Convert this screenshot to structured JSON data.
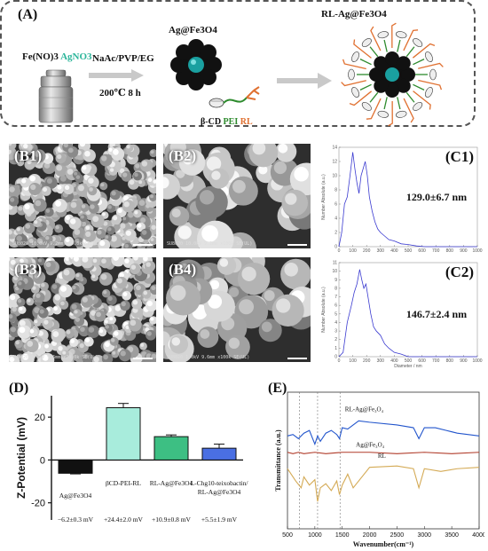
{
  "panel_a": {
    "label": "(A)",
    "precursor_1": "Fe(NO)3",
    "precursor_2": "AgNO3",
    "conditions_1": "NaAc/PVP/EG",
    "conditions_2": "200℃ 8 h",
    "product_1": "Ag@Fe3O4",
    "product_2": "RL-Ag@Fe3O4",
    "ligand_1": "β-CD",
    "ligand_2": "PEI",
    "ligand_3": "RL",
    "colors": {
      "agno3": "#2bb59a",
      "pei": "#2e8b2e",
      "rl": "#e07030",
      "core": "#1aa0a0"
    }
  },
  "sem": [
    {
      "label": "(B1)",
      "scale_text": "SU8020 10.0kV 9.2mm x20.0k SE(UL)",
      "bar_text": "2.00µm"
    },
    {
      "label": "(B2)",
      "scale_text": "SU8020 10.0kV 9.2mm x100k SE(UL)",
      "bar_text": "500nm"
    },
    {
      "label": "(B3)",
      "scale_text": "SU8020 1.0kV 9.6mm x20.0k SE(UL)",
      "bar_text": "2.00µm"
    },
    {
      "label": "(B4)",
      "scale_text": "SU8020 1.0kV 9.6mm x100k SE(UL)",
      "bar_text": "500nm"
    }
  ],
  "chart_data": [
    {
      "id": "C1",
      "type": "line",
      "label": "(C1)",
      "annotation": "129.0±6.7 nm",
      "ylabel": "Number Absolute (a.u.)",
      "xlabel": "",
      "xlim": [
        0,
        1000
      ],
      "ylim": [
        0,
        14
      ],
      "xticks": [
        0,
        100,
        200,
        300,
        400,
        500,
        600,
        700,
        800,
        900,
        1000
      ],
      "yticks": [
        0,
        2,
        4,
        6,
        8,
        10,
        12,
        14
      ],
      "x": [
        0,
        20,
        40,
        60,
        80,
        100,
        115,
        130,
        145,
        160,
        175,
        190,
        205,
        220,
        240,
        260,
        280,
        300,
        330,
        360,
        400,
        450,
        500,
        560,
        620,
        700,
        1000
      ],
      "y": [
        0,
        2,
        6,
        7,
        10,
        13.3,
        11,
        9,
        7.5,
        10,
        11,
        12,
        10,
        7,
        5,
        3.5,
        2.5,
        2,
        1.5,
        1,
        0.8,
        0.4,
        0.3,
        0.1,
        0,
        0,
        0
      ]
    },
    {
      "id": "C2",
      "type": "line",
      "label": "(C2)",
      "annotation": "146.7±2.4 nm",
      "ylabel": "Number Absolute (a.u.)",
      "xlabel": "Diameter / nm",
      "xlim": [
        0,
        1000
      ],
      "ylim": [
        0,
        11
      ],
      "xticks": [
        0,
        100,
        200,
        300,
        400,
        500,
        600,
        700,
        800,
        900,
        1000
      ],
      "yticks": [
        0,
        1,
        2,
        3,
        4,
        5,
        6,
        7,
        8,
        9,
        10,
        11
      ],
      "x": [
        0,
        30,
        60,
        90,
        110,
        130,
        150,
        165,
        180,
        195,
        210,
        230,
        250,
        270,
        300,
        330,
        360,
        400,
        450,
        500,
        1000
      ],
      "y": [
        0,
        0.5,
        4,
        6,
        7.5,
        8.5,
        10.2,
        9,
        8,
        8.5,
        7,
        5,
        3.5,
        3,
        2.5,
        1.5,
        1,
        0.5,
        0.3,
        0,
        0
      ]
    },
    {
      "id": "D",
      "type": "bar",
      "label": "(D)",
      "ylabel": "Z-Potential (mV)",
      "xlabel": "",
      "ylim": [
        -28,
        30
      ],
      "yticks": [
        -20,
        0,
        20
      ],
      "categories": [
        "Ag@Fe3O4",
        "βCD-PEI-RL",
        "RL-Ag@Fe3O4",
        "L-Chg10-teixobactin/ RL-Ag@Fe3O4"
      ],
      "values": [
        -6.2,
        24.4,
        10.9,
        5.5
      ],
      "errors": [
        0.3,
        2.0,
        0.8,
        1.9
      ],
      "value_labels": [
        "−6.2±0.3 mV",
        "+24.4±2.0 mV",
        "+10.9±0.8 mV",
        "+5.5±1.9 mV"
      ],
      "colors": [
        "#111111",
        "#a8ecdc",
        "#3dbf83",
        "#4a6fe3"
      ]
    },
    {
      "id": "E",
      "type": "line",
      "label": "(E)",
      "ylabel": "Transmittance (a.u.)",
      "xlabel": "Wavenumber(cm⁻¹)",
      "xlim": [
        500,
        4000
      ],
      "xticks": [
        500,
        1000,
        1500,
        2000,
        2500,
        3000,
        3500,
        4000
      ],
      "series": [
        {
          "name": "RL-Ag@Fe₃O₄",
          "color": "#2255cc",
          "x": [
            500,
            600,
            700,
            800,
            900,
            1000,
            1050,
            1100,
            1200,
            1300,
            1400,
            1450,
            1500,
            1600,
            1700,
            1800,
            2000,
            2500,
            2800,
            2900,
            3000,
            3200,
            3400,
            3600,
            4000
          ],
          "y": [
            0.68,
            0.69,
            0.66,
            0.7,
            0.72,
            0.62,
            0.68,
            0.64,
            0.7,
            0.72,
            0.69,
            0.66,
            0.74,
            0.73,
            0.76,
            0.79,
            0.78,
            0.76,
            0.74,
            0.66,
            0.74,
            0.74,
            0.72,
            0.7,
            0.68
          ]
        },
        {
          "name": "Ag@Fe₃O₄",
          "color": "#b03a28",
          "x": [
            500,
            600,
            700,
            800,
            1000,
            1200,
            1500,
            2000,
            2500,
            3000,
            3500,
            4000
          ],
          "y": [
            0.56,
            0.55,
            0.56,
            0.55,
            0.56,
            0.55,
            0.56,
            0.56,
            0.55,
            0.56,
            0.55,
            0.56
          ]
        },
        {
          "name": "RL",
          "color": "#d4aa55",
          "x": [
            500,
            650,
            750,
            800,
            900,
            1000,
            1050,
            1100,
            1200,
            1300,
            1400,
            1450,
            1500,
            1600,
            1700,
            2000,
            2500,
            2800,
            2900,
            3000,
            3300,
            3600,
            4000
          ],
          "y": [
            0.44,
            0.35,
            0.3,
            0.38,
            0.32,
            0.36,
            0.2,
            0.3,
            0.33,
            0.28,
            0.35,
            0.25,
            0.32,
            0.4,
            0.3,
            0.45,
            0.46,
            0.44,
            0.3,
            0.44,
            0.42,
            0.44,
            0.45
          ]
        }
      ],
      "dashed_lines_x": [
        720,
        1050,
        1460
      ]
    }
  ]
}
